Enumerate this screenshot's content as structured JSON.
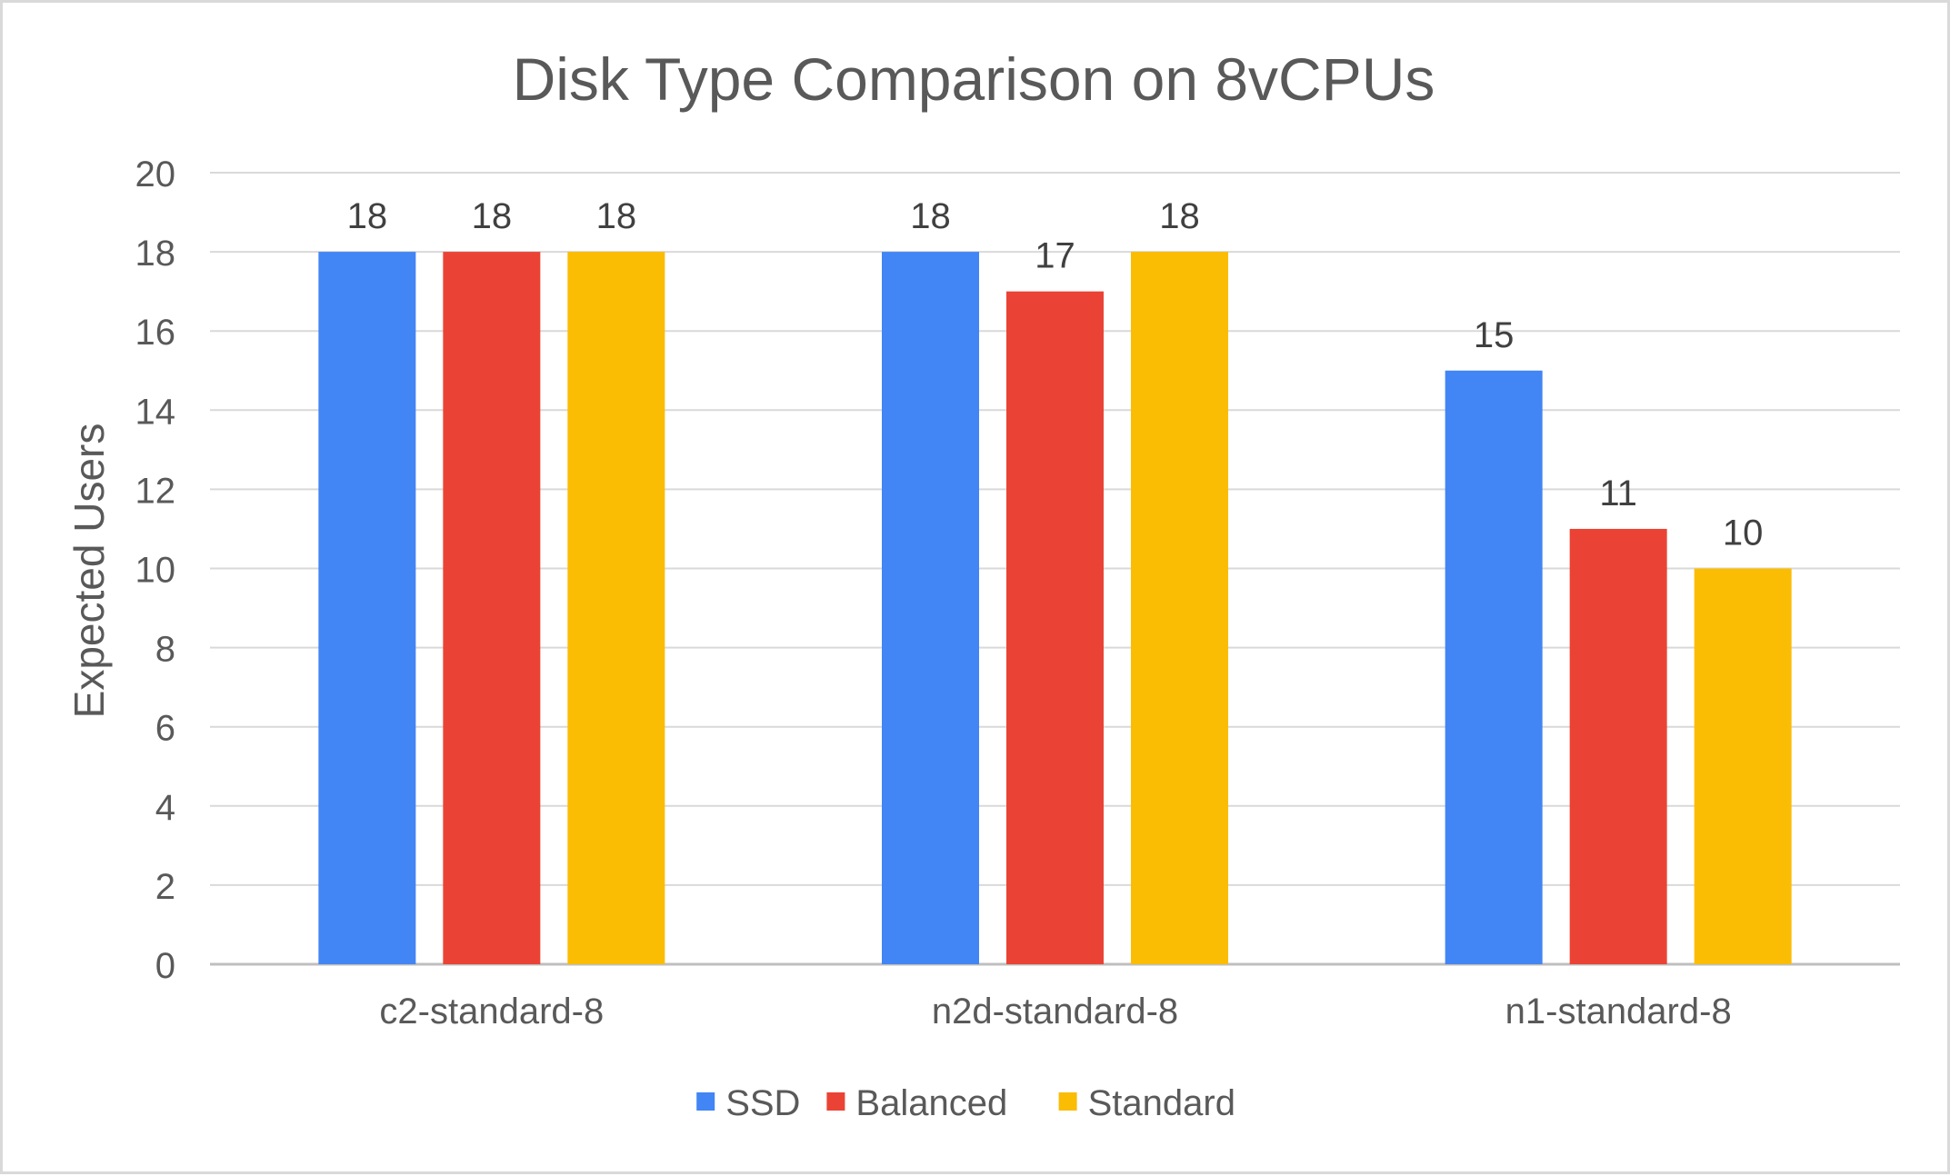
{
  "chart_data": {
    "type": "bar",
    "title": "Disk Type Comparison on 8vCPUs",
    "xlabel": "",
    "ylabel": "Expected Users",
    "ylim": [
      0,
      20
    ],
    "yticks": [
      0,
      2,
      4,
      6,
      8,
      10,
      12,
      14,
      16,
      18,
      20
    ],
    "categories": [
      "c2-standard-8",
      "n2d-standard-8",
      "n1-standard-8"
    ],
    "series": [
      {
        "name": "SSD",
        "color": "#4285F4",
        "values": [
          18,
          18,
          15
        ]
      },
      {
        "name": "Balanced",
        "color": "#EA4335",
        "values": [
          18,
          17,
          11
        ]
      },
      {
        "name": "Standard",
        "color": "#FBBC04",
        "values": [
          18,
          18,
          10
        ]
      }
    ],
    "grid": true,
    "legend_position": "bottom",
    "data_labels": true
  },
  "colors": {
    "text": "#595959",
    "gridline": "#d9d9d9",
    "axis": "#bfbfbf"
  }
}
